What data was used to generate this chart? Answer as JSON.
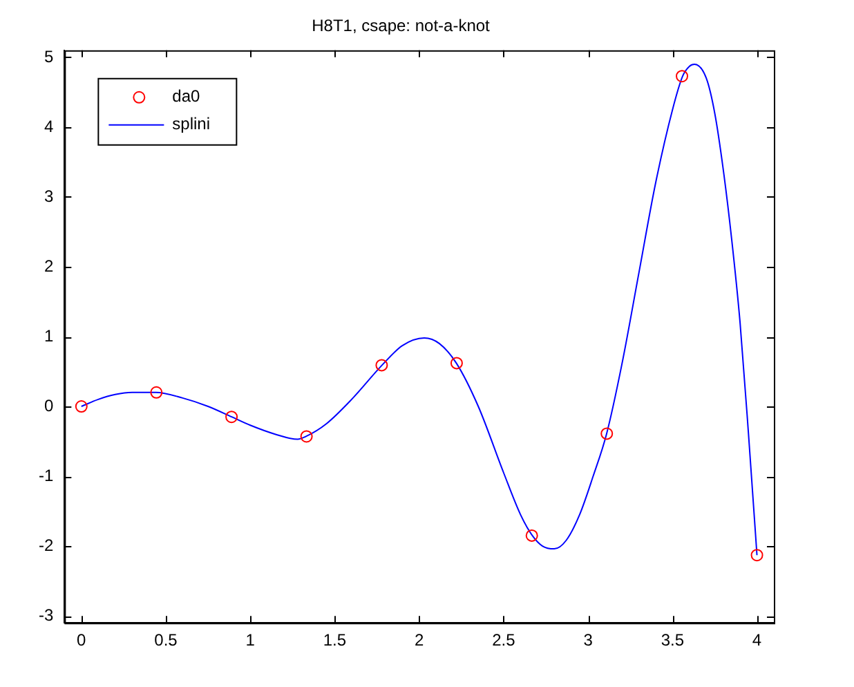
{
  "chart_data": {
    "type": "line",
    "title": "H8T1, csape: not-a-knot",
    "xlim": [
      -0.1,
      4.1
    ],
    "xticks": [
      0,
      0.5,
      1,
      1.5,
      2,
      2.5,
      3,
      3.5,
      4
    ],
    "ylim": [
      -3.1,
      5.1
    ],
    "yticks": [
      -3,
      -2,
      -1,
      0,
      1,
      2,
      3,
      4,
      5
    ],
    "grid": false,
    "legend": "top left",
    "series": [
      {
        "name": "da0",
        "type": "scatter",
        "marker": "circle",
        "color": "#ff0000",
        "x": [
          0,
          0.444,
          0.889,
          1.333,
          1.778,
          2.222,
          2.667,
          3.111,
          3.556,
          4.0
        ],
        "values": [
          0,
          0.2,
          -0.15,
          -0.43,
          0.59,
          0.62,
          -1.85,
          -0.39,
          4.73,
          -2.13
        ]
      },
      {
        "name": "splini",
        "type": "line",
        "marker": "none",
        "line_style": "solid",
        "color": "#0000ff",
        "x": [
          0,
          0.1,
          0.2,
          0.3,
          0.44,
          0.6,
          0.75,
          0.89,
          1.0,
          1.15,
          1.28,
          1.33,
          1.45,
          1.6,
          1.78,
          1.9,
          2.03,
          2.12,
          2.22,
          2.35,
          2.5,
          2.6,
          2.67,
          2.73,
          2.8,
          2.87,
          2.95,
          3.03,
          3.11,
          3.2,
          3.3,
          3.4,
          3.5,
          3.56,
          3.6,
          3.63,
          3.7,
          3.75,
          3.8,
          3.85,
          3.9,
          3.95,
          4.0
        ],
        "values": [
          0,
          0.1,
          0.17,
          0.2,
          0.2,
          0.12,
          0.0,
          -0.15,
          -0.27,
          -0.4,
          -0.47,
          -0.43,
          -0.25,
          0.1,
          0.59,
          0.87,
          0.98,
          0.9,
          0.62,
          0.0,
          -0.95,
          -1.55,
          -1.85,
          -2.0,
          -2.04,
          -1.92,
          -1.55,
          -1.0,
          -0.39,
          0.6,
          1.9,
          3.2,
          4.25,
          4.73,
          4.87,
          4.9,
          4.7,
          4.2,
          3.4,
          2.4,
          1.2,
          -0.4,
          -2.13
        ]
      }
    ]
  }
}
